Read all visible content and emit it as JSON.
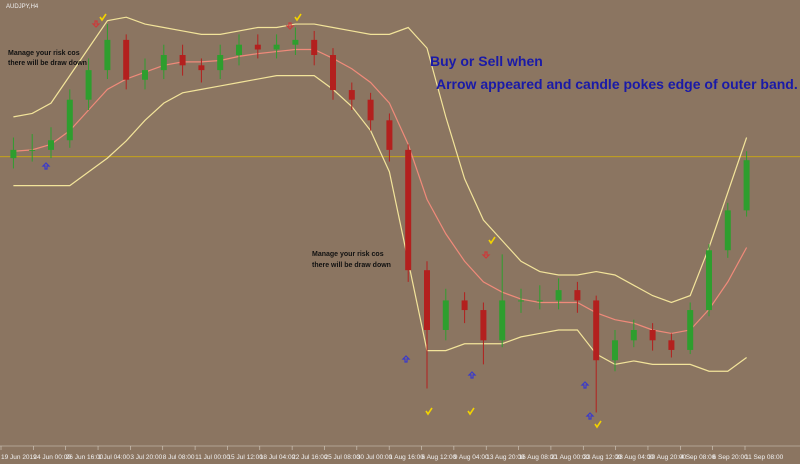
{
  "chart_data": {
    "type": "candlestick",
    "symbol": "AUDJPY,H4",
    "headline": "Buy or Sell when",
    "instruction": "Arrow appeared and candle pokes edge of outer band.",
    "notes": [
      {
        "lines": [
          "Manage your risk cos",
          "there will be draw down"
        ]
      },
      {
        "lines": [
          "Manage your risk cos",
          "there will be draw down"
        ]
      }
    ],
    "time_labels": [
      "19 Jun 2019",
      "24 Jun 00:00",
      "26 Jun 16:00",
      "1 Jul 04:00",
      "3 Jul 20:00",
      "8 Jul 08:00",
      "11 Jul 00:00",
      "15 Jul 12:00",
      "18 Jul 04:00",
      "22 Jul 16:00",
      "25 Jul 08:00",
      "30 Jul 00:00",
      "1 Aug 16:00",
      "6 Aug 12:00",
      "9 Aug 04:00",
      "13 Aug 20:00",
      "16 Aug 08:00",
      "21 Aug 00:00",
      "23 Aug 12:00",
      "28 Aug 04:00",
      "30 Aug 20:00",
      "4 Sep 08:00",
      "6 Sep 20:00",
      "11 Sep 08:00"
    ],
    "ylim": [
      70.5,
      76.9
    ],
    "hline": 74.62,
    "colors": {
      "up": "#2e9e2e",
      "down": "#b3201e",
      "upper": "#f3e49a",
      "middle": "#f08a7a",
      "lower": "#f3e49a",
      "hline": "#d9b400"
    },
    "candles": {
      "open": [
        74.6,
        74.72,
        74.72,
        74.86,
        75.45,
        75.88,
        76.32,
        75.74,
        75.88,
        76.1,
        75.95,
        75.88,
        76.1,
        76.25,
        76.18,
        76.25,
        76.32,
        76.1,
        75.59,
        75.45,
        75.15,
        74.72,
        72.97,
        72.1,
        72.53,
        72.39,
        71.95,
        72.53,
        72.53,
        72.53,
        72.68,
        72.53,
        71.66,
        71.95,
        72.1,
        71.95,
        71.81,
        72.39,
        73.26,
        73.84
      ],
      "high": [
        74.9,
        74.95,
        75.05,
        75.6,
        76.05,
        76.55,
        76.4,
        76.05,
        76.25,
        76.25,
        76.05,
        76.25,
        76.4,
        76.4,
        76.4,
        76.5,
        76.45,
        76.2,
        75.7,
        75.55,
        75.25,
        74.8,
        73.1,
        72.7,
        72.65,
        72.5,
        73.2,
        72.7,
        72.75,
        72.85,
        72.8,
        72.6,
        72.1,
        72.25,
        72.2,
        72.05,
        72.5,
        73.35,
        73.95,
        74.7
      ],
      "low": [
        74.45,
        74.55,
        74.6,
        74.75,
        75.3,
        75.75,
        75.6,
        75.6,
        75.75,
        75.8,
        75.7,
        75.75,
        75.95,
        76.05,
        76.05,
        76.1,
        75.95,
        75.45,
        75.3,
        75.0,
        74.55,
        72.8,
        71.25,
        71.95,
        72.2,
        71.6,
        71.85,
        72.35,
        72.4,
        72.4,
        72.35,
        70.9,
        71.5,
        71.85,
        71.8,
        71.7,
        71.75,
        72.3,
        73.15,
        73.75
      ],
      "close": [
        74.72,
        74.72,
        74.86,
        75.45,
        75.88,
        76.32,
        75.74,
        75.88,
        76.1,
        75.95,
        75.88,
        76.1,
        76.25,
        76.18,
        76.25,
        76.32,
        76.1,
        75.59,
        75.45,
        75.15,
        74.72,
        72.97,
        72.1,
        72.53,
        72.39,
        71.95,
        72.53,
        72.53,
        72.53,
        72.68,
        72.53,
        71.66,
        71.95,
        72.1,
        71.95,
        71.81,
        72.39,
        73.26,
        73.84,
        74.57
      ]
    },
    "bands": {
      "upper": [
        75.2,
        75.25,
        75.4,
        75.8,
        76.2,
        76.6,
        76.65,
        76.55,
        76.5,
        76.45,
        76.4,
        76.4,
        76.45,
        76.5,
        76.5,
        76.55,
        76.55,
        76.5,
        76.45,
        76.4,
        76.4,
        76.5,
        76.2,
        75.2,
        74.3,
        73.7,
        73.4,
        73.1,
        72.95,
        72.9,
        72.9,
        72.95,
        72.9,
        72.75,
        72.6,
        72.5,
        72.6,
        73.3,
        74.1,
        74.9
      ],
      "middle": [
        74.7,
        74.72,
        74.8,
        75.0,
        75.3,
        75.6,
        75.75,
        75.85,
        75.95,
        76.0,
        76.0,
        76.02,
        76.08,
        76.12,
        76.15,
        76.18,
        76.18,
        76.05,
        75.9,
        75.7,
        75.4,
        74.8,
        74.0,
        73.5,
        73.1,
        72.8,
        72.65,
        72.55,
        72.5,
        72.5,
        72.5,
        72.35,
        72.25,
        72.2,
        72.1,
        72.05,
        72.1,
        72.4,
        72.8,
        73.3
      ],
      "lower": [
        74.2,
        74.2,
        74.2,
        74.2,
        74.4,
        74.6,
        74.85,
        75.15,
        75.4,
        75.55,
        75.6,
        75.65,
        75.7,
        75.75,
        75.8,
        75.8,
        75.8,
        75.6,
        75.35,
        75.0,
        74.4,
        73.1,
        71.8,
        71.8,
        71.9,
        71.9,
        71.9,
        72.0,
        72.05,
        72.1,
        72.1,
        71.75,
        71.6,
        71.65,
        71.6,
        71.6,
        71.6,
        71.5,
        71.5,
        71.7
      ]
    }
  }
}
